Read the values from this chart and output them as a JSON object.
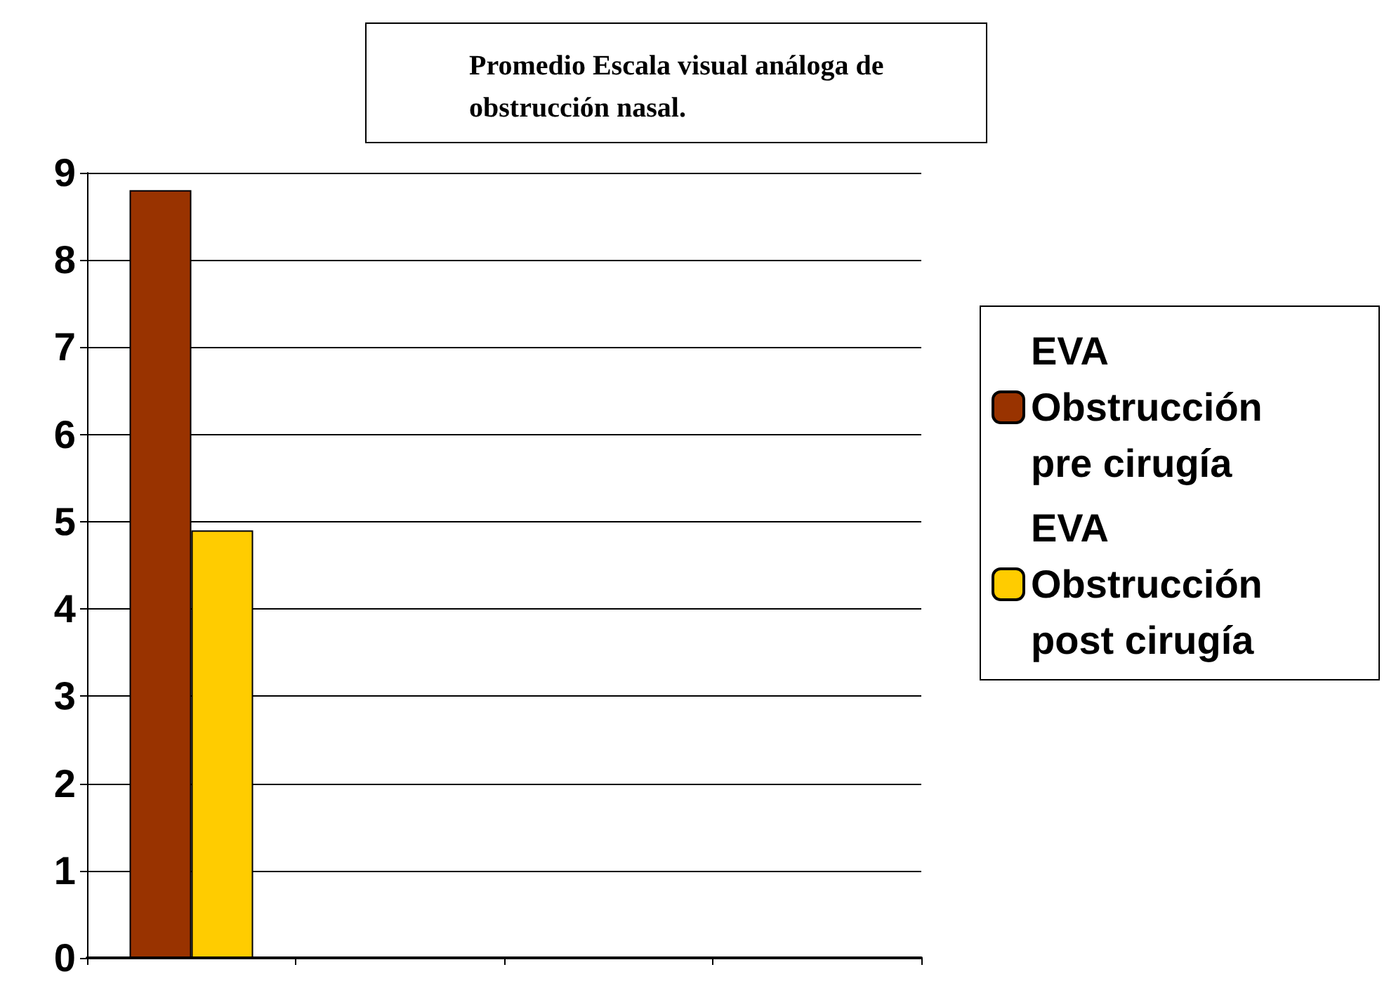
{
  "chart_data": {
    "type": "bar",
    "title": "Promedio Escala visual análoga de obstrucción nasal.",
    "categories": [
      null,
      null,
      null,
      null
    ],
    "series": [
      {
        "name": "EVA Obstrucción pre cirugía",
        "color": "#993300",
        "values": [
          8.8,
          null,
          null,
          null
        ]
      },
      {
        "name": "EVA Obstrucción post cirugía",
        "color": "#ffcc00",
        "values": [
          4.9,
          null,
          null,
          null
        ]
      }
    ],
    "ylim": [
      0,
      9
    ],
    "yticks": [
      0,
      1,
      2,
      3,
      4,
      5,
      6,
      7,
      8,
      9
    ],
    "grid": "y",
    "legend": "right"
  }
}
